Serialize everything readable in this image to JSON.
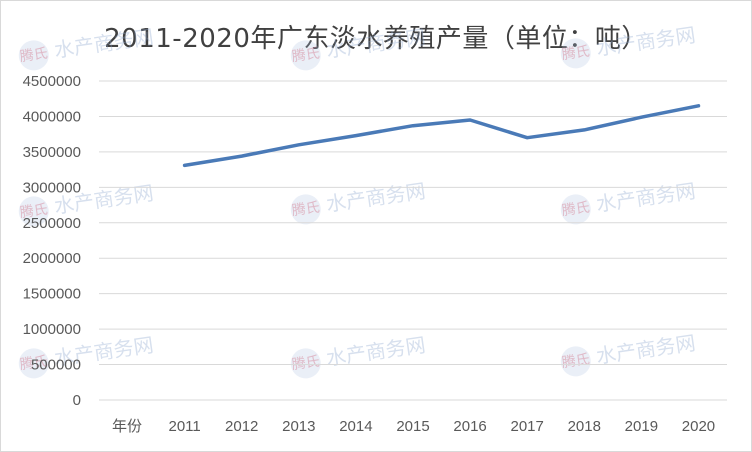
{
  "title": "2011-2020年广东淡水养殖产量（单位：吨）",
  "watermark": {
    "seal": "腾氏",
    "text": "水产商务网"
  },
  "chart_data": {
    "type": "line",
    "title": "2011-2020年广东淡水养殖产量（单位：吨）",
    "category_axis_label": "年份",
    "categories": [
      "2011",
      "2012",
      "2013",
      "2014",
      "2015",
      "2016",
      "2017",
      "2018",
      "2019",
      "2020"
    ],
    "series": [
      {
        "values": [
          3310000,
          3440000,
          3600000,
          3730000,
          3870000,
          3950000,
          3700000,
          3810000,
          3990000,
          4150000
        ]
      }
    ],
    "ylim": [
      0,
      4500000
    ],
    "yticks": [
      "0",
      "500000",
      "1000000",
      "1500000",
      "2000000",
      "2500000",
      "3000000",
      "3500000",
      "4000000",
      "4500000"
    ],
    "grid": true,
    "legend": "none",
    "line_color": "#4a7ab7",
    "grid_color": "#d9d9d9"
  }
}
